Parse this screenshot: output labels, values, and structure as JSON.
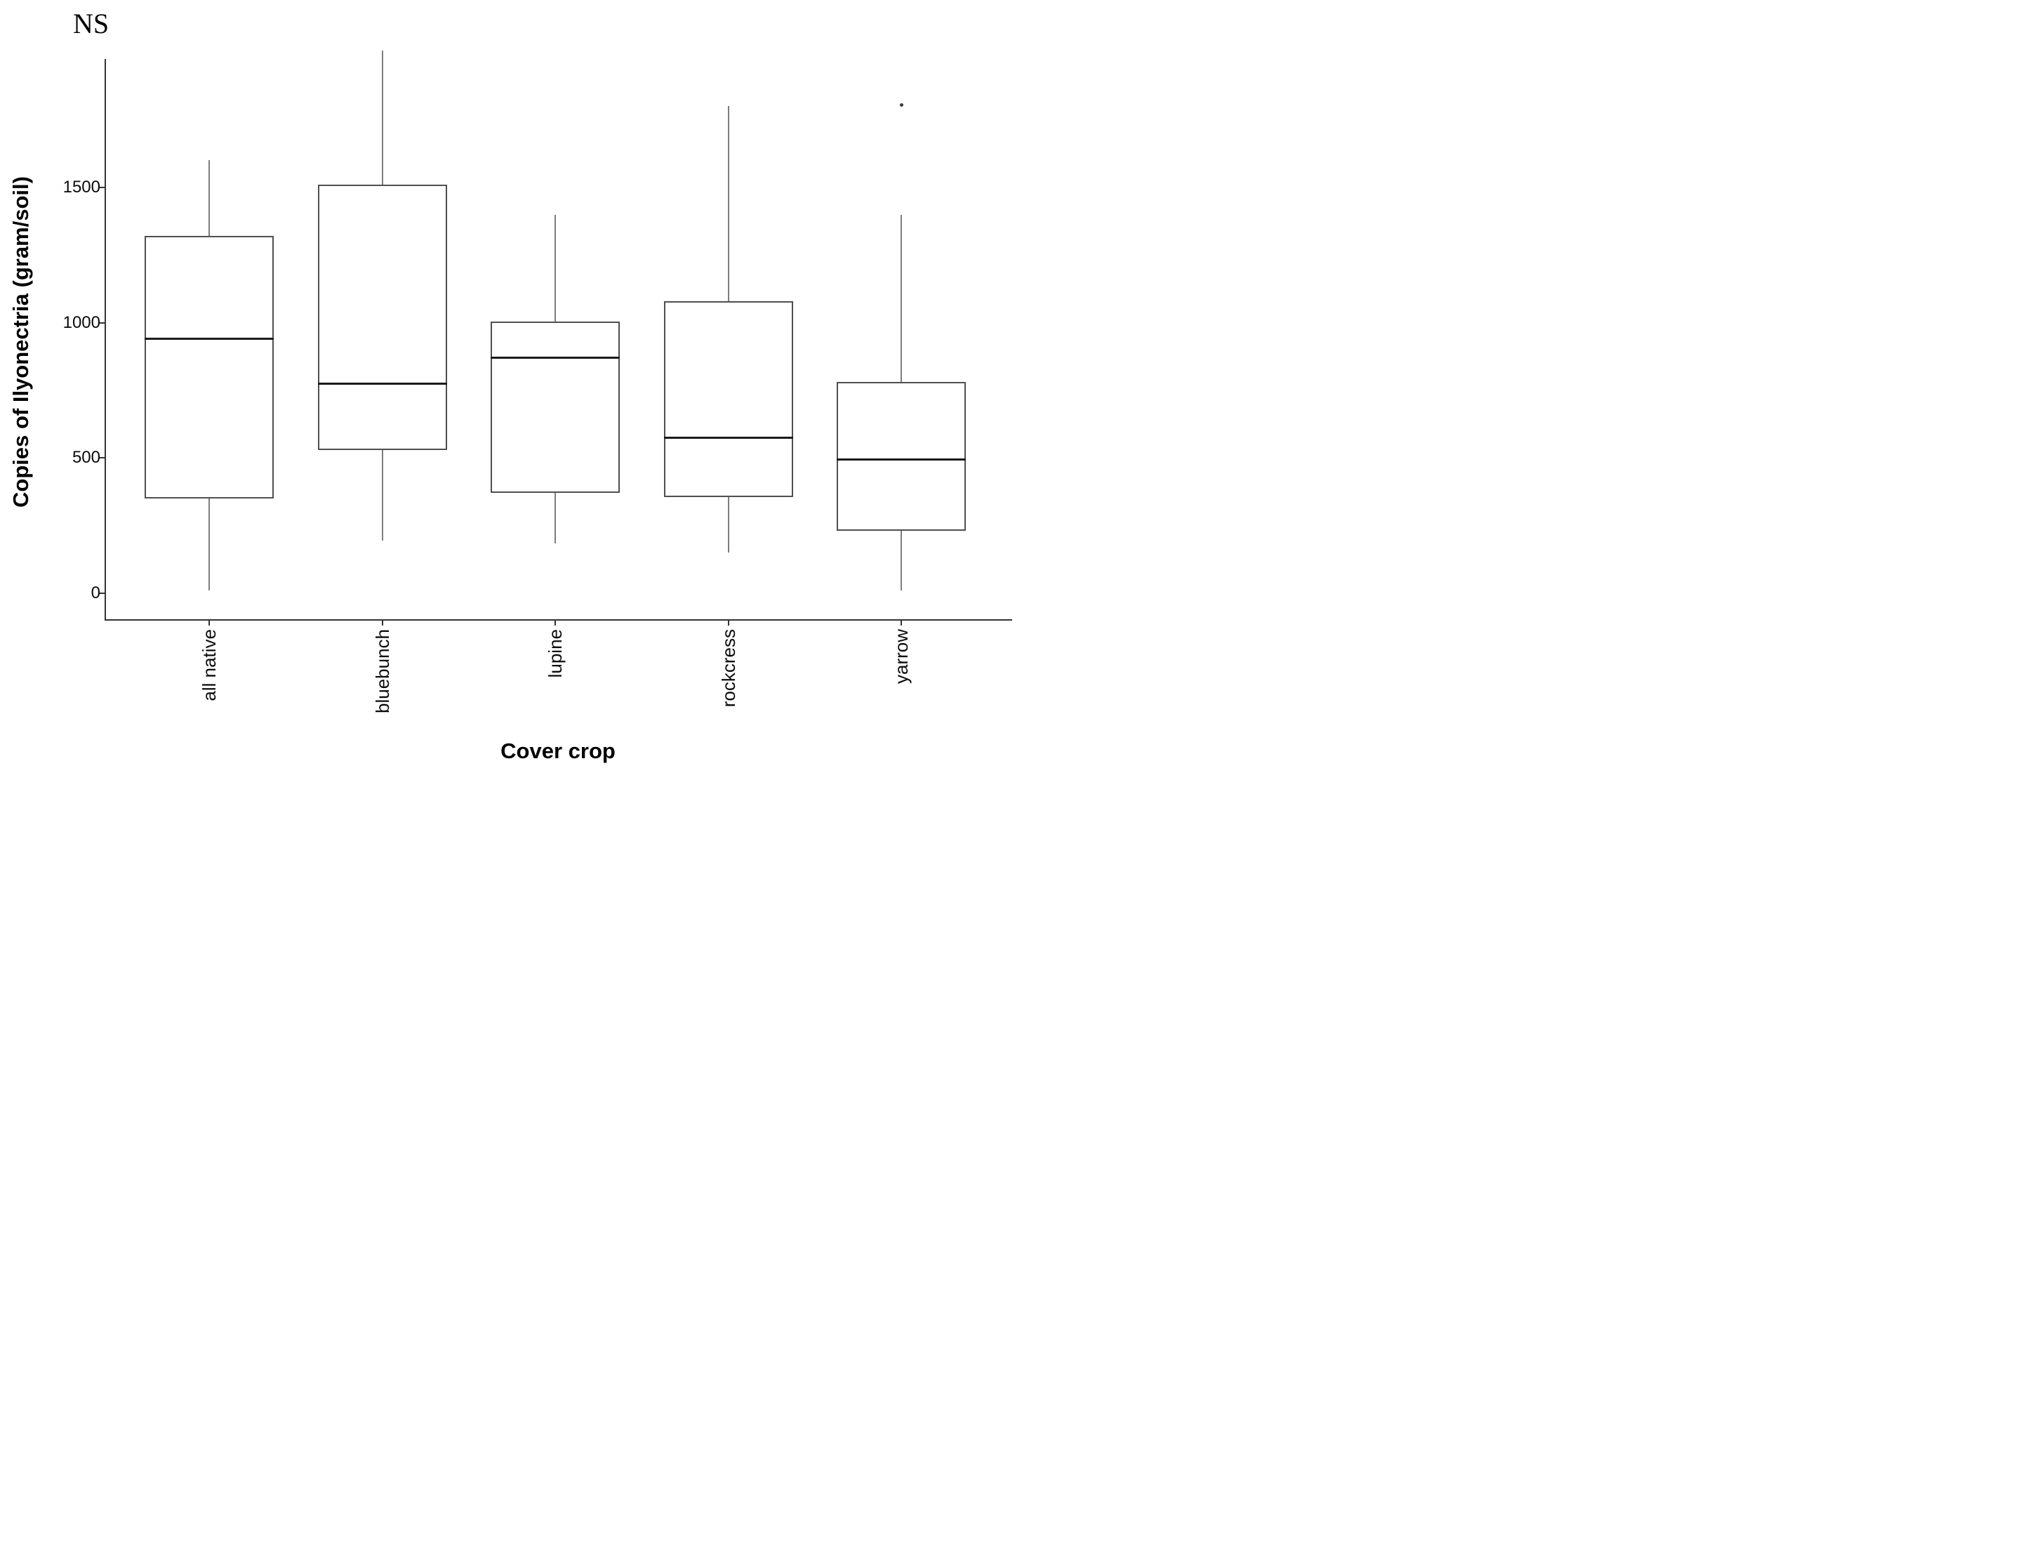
{
  "chart_data": {
    "type": "boxplot",
    "annotation": "NS",
    "xlabel": "Cover crop",
    "ylabel": "Copies of Ilyonectria (gram/soil)",
    "categories": [
      "all native",
      "bluebunch",
      "lupine",
      "rockcress",
      "yarrow"
    ],
    "yticks": [
      0,
      500,
      1000,
      1500
    ],
    "ylim": [
      -100,
      1990
    ],
    "grid": false,
    "legend": "none",
    "series": [
      {
        "name": "all native",
        "min": 10,
        "q1": 350,
        "median": 940,
        "q3": 1320,
        "max": 1600,
        "outliers": []
      },
      {
        "name": "bluebunch",
        "min": 195,
        "q1": 530,
        "median": 775,
        "q3": 1510,
        "max": 2005,
        "outliers": []
      },
      {
        "name": "lupine",
        "min": 185,
        "q1": 370,
        "median": 870,
        "q3": 1005,
        "max": 1400,
        "outliers": []
      },
      {
        "name": "rockcress",
        "min": 150,
        "q1": 355,
        "median": 575,
        "q3": 1080,
        "max": 1800,
        "outliers": []
      },
      {
        "name": "yarrow",
        "min": 10,
        "q1": 230,
        "median": 495,
        "q3": 780,
        "max": 1400,
        "outliers": [
          1805
        ]
      }
    ],
    "colors": {
      "background": "#ffffff",
      "box_border": "#4f4f4f",
      "median": "#1b1b1b",
      "whisker": "#7d7d7d",
      "axis": "#333333",
      "text": "#000000",
      "outlier": "#3c3c3c"
    }
  }
}
